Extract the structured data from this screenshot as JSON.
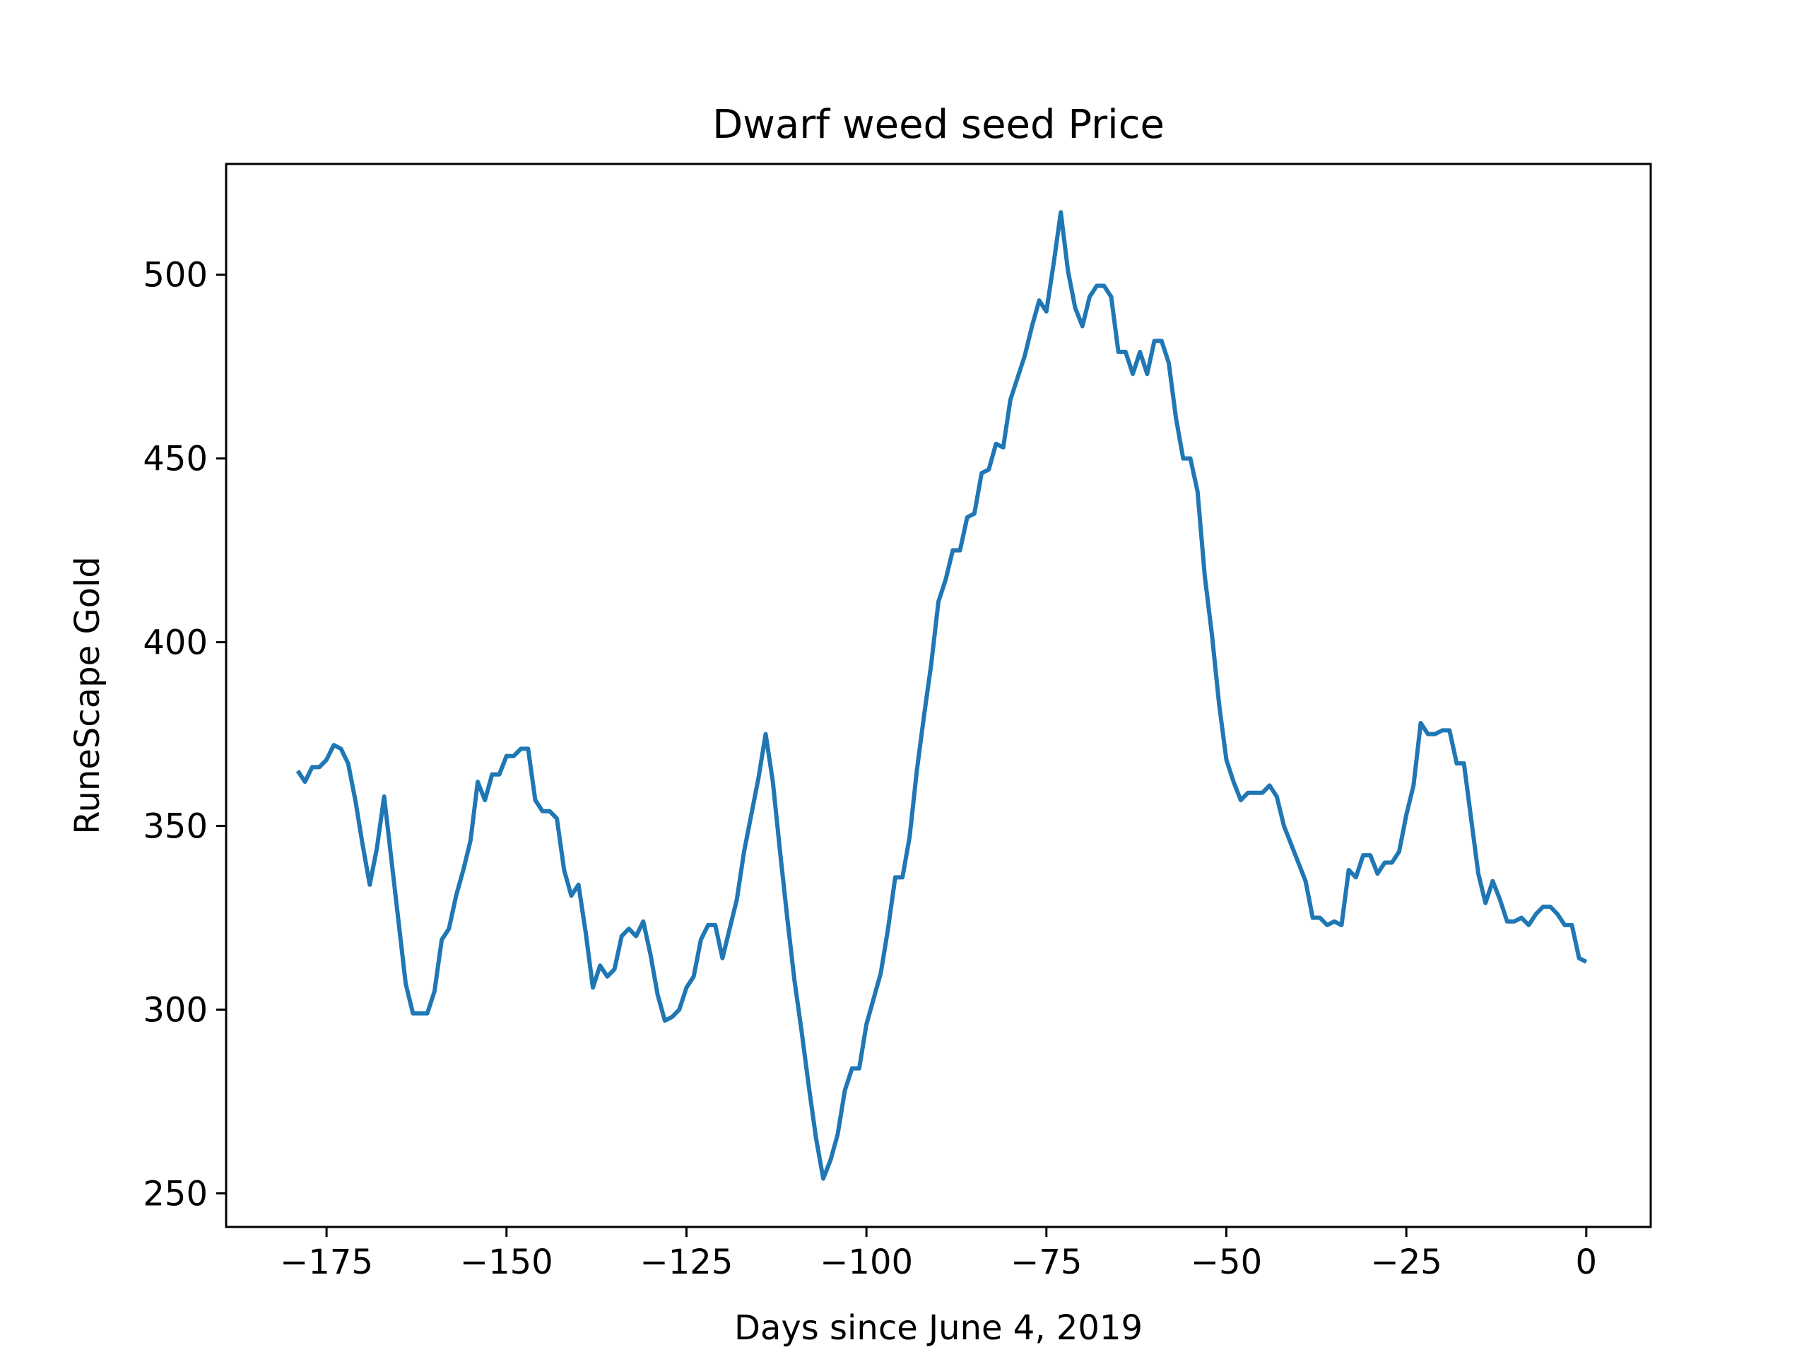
{
  "chart_data": {
    "type": "line",
    "title": "Dwarf weed seed Price",
    "xlabel": "Days since June 4, 2019",
    "ylabel": "RuneScape Gold",
    "xlim": [
      -188.95,
      8.95
    ],
    "ylim": [
      240.85,
      530.15
    ],
    "xticks": [
      -175,
      -150,
      -125,
      -100,
      -75,
      -50,
      -25,
      0
    ],
    "xtick_labels": [
      "−175",
      "−150",
      "−125",
      "−100",
      "−75",
      "−50",
      "−25",
      "0"
    ],
    "yticks": [
      250,
      300,
      350,
      400,
      450,
      500
    ],
    "ytick_labels": [
      "250",
      "300",
      "350",
      "400",
      "450",
      "500"
    ],
    "grid": false,
    "series": [
      {
        "color": "#1f77b4",
        "x": [
          -179,
          -178,
          -177,
          -176,
          -175,
          -174,
          -173,
          -172,
          -171,
          -170,
          -169,
          -168,
          -167,
          -166,
          -165,
          -164,
          -163,
          -162,
          -161,
          -160,
          -159,
          -158,
          -157,
          -156,
          -155,
          -154,
          -153,
          -152,
          -151,
          -150,
          -149,
          -148,
          -147,
          -146,
          -145,
          -144,
          -143,
          -142,
          -141,
          -140,
          -139,
          -138,
          -137,
          -136,
          -135,
          -134,
          -133,
          -132,
          -131,
          -130,
          -129,
          -128,
          -127,
          -126,
          -125,
          -124,
          -123,
          -122,
          -121,
          -120,
          -119,
          -118,
          -117,
          -116,
          -115,
          -114,
          -113,
          -112,
          -111,
          -110,
          -109,
          -108,
          -107,
          -106,
          -105,
          -104,
          -103,
          -102,
          -101,
          -100,
          -99,
          -98,
          -97,
          -96,
          -95,
          -94,
          -93,
          -92,
          -91,
          -90,
          -89,
          -88,
          -87,
          -86,
          -85,
          -84,
          -83,
          -82,
          -81,
          -80,
          -79,
          -78,
          -77,
          -76,
          -75,
          -74,
          -73,
          -72,
          -71,
          -70,
          -69,
          -68,
          -67,
          -66,
          -65,
          -64,
          -63,
          -62,
          -61,
          -60,
          -59,
          -58,
          -57,
          -56,
          -55,
          -54,
          -53,
          -52,
          -51,
          -50,
          -49,
          -48,
          -47,
          -46,
          -45,
          -44,
          -43,
          -42,
          -41,
          -40,
          -39,
          -38,
          -37,
          -36,
          -35,
          -34,
          -33,
          -32,
          -31,
          -30,
          -29,
          -28,
          -27,
          -26,
          -25,
          -24,
          -23,
          -22,
          -21,
          -20,
          -19,
          -18,
          -17,
          -16,
          -15,
          -14,
          -13,
          -12,
          -11,
          -10,
          -9,
          -8,
          -7,
          -6,
          -5,
          -4,
          -3,
          -2,
          -1,
          0
        ],
        "y": [
          365,
          362,
          366,
          366,
          368,
          372,
          371,
          367,
          357,
          345,
          334,
          344,
          358,
          341,
          324,
          307,
          299,
          299,
          299,
          305,
          319,
          322,
          331,
          338,
          346,
          362,
          357,
          364,
          364,
          369,
          369,
          371,
          371,
          357,
          354,
          354,
          352,
          338,
          331,
          334,
          321,
          306,
          312,
          309,
          311,
          320,
          322,
          320,
          324,
          315,
          304,
          297,
          298,
          300,
          306,
          309,
          319,
          323,
          323,
          314,
          322,
          330,
          343,
          353,
          363,
          375,
          362,
          343,
          325,
          308,
          294,
          279,
          265,
          254,
          259,
          266,
          278,
          284,
          284,
          296,
          303,
          310,
          322,
          336,
          336,
          347,
          365,
          380,
          394,
          411,
          417,
          425,
          425,
          434,
          435,
          446,
          447,
          454,
          453,
          466,
          472,
          478,
          486,
          493,
          490,
          503,
          517,
          501,
          491,
          486,
          494,
          497,
          497,
          494,
          479,
          479,
          473,
          479,
          473,
          482,
          482,
          476,
          461,
          450,
          450,
          441,
          418,
          402,
          383,
          368,
          362,
          357,
          359,
          359,
          359,
          361,
          358,
          350,
          345,
          340,
          335,
          325,
          325,
          323,
          324,
          323,
          338,
          336,
          342,
          342,
          337,
          340,
          340,
          343,
          353,
          361,
          378,
          375,
          375,
          376,
          376,
          367,
          367,
          352,
          337,
          329,
          335,
          330,
          324,
          324,
          325,
          323,
          326,
          328,
          328,
          326,
          323,
          323,
          314,
          313
        ]
      }
    ]
  }
}
